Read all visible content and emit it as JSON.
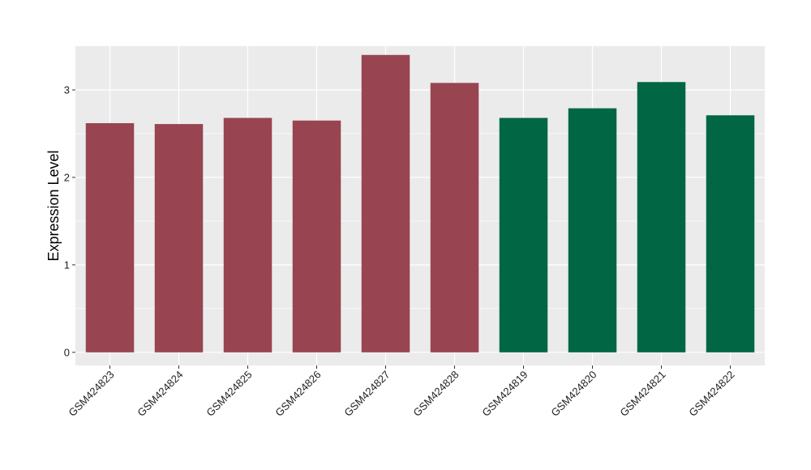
{
  "chart_data": {
    "type": "bar",
    "title": "",
    "xlabel": "",
    "ylabel": "Expression Level",
    "ylim": [
      -0.15,
      3.5
    ],
    "yticks": [
      0,
      1,
      2,
      3
    ],
    "grid": true,
    "legend": "none",
    "categories": [
      "GSM424823",
      "GSM424824",
      "GSM424825",
      "GSM424826",
      "GSM424827",
      "GSM424828",
      "GSM424819",
      "GSM424820",
      "GSM424821",
      "GSM424822"
    ],
    "values": [
      2.62,
      2.61,
      2.68,
      2.65,
      3.4,
      3.08,
      2.68,
      2.79,
      3.09,
      2.71
    ],
    "groups": [
      0,
      0,
      0,
      0,
      0,
      0,
      1,
      1,
      1,
      1
    ],
    "group_colors": [
      "#994451",
      "#006644"
    ],
    "panel_color": "#ebebeb",
    "grid_color": "#ffffff"
  }
}
